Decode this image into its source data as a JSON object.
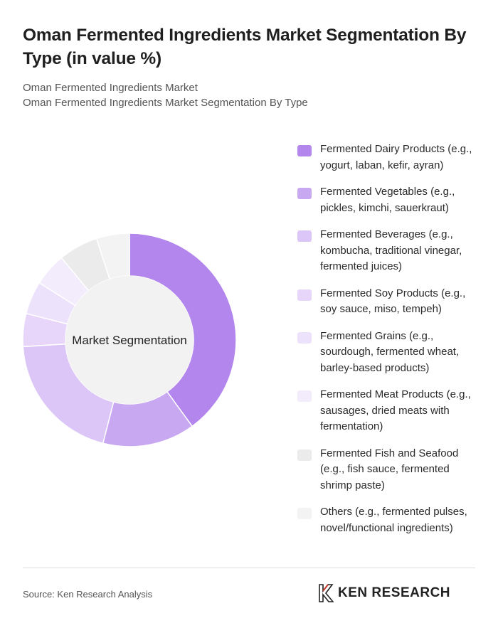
{
  "header": {
    "title": "Oman Fermented Ingredients Market Segmentation By Type (in value %)",
    "subtitle_line1": "Oman Fermented Ingredients Market",
    "subtitle_line2": "Oman Fermented Ingredients Market Segmentation By Type"
  },
  "chart_data": {
    "type": "pie",
    "center_label": "Market Segmentation",
    "series": [
      {
        "name": "Fermented Dairy Products (e.g., yogurt, laban, kefir, ayran)",
        "value": 40,
        "color": "#b286ec"
      },
      {
        "name": "Fermented Vegetables (e.g., pickles, kimchi, sauerkraut)",
        "value": 14,
        "color": "#c9a8f2"
      },
      {
        "name": "Fermented Beverages (e.g., kombucha, traditional vinegar, fermented juices)",
        "value": 20,
        "color": "#dcc5f7"
      },
      {
        "name": "Fermented Soy Products (e.g., soy sauce, miso, tempeh)",
        "value": 5,
        "color": "#e7d6fa"
      },
      {
        "name": "Fermented Grains (e.g., sourdough, fermented wheat, barley-based products)",
        "value": 5,
        "color": "#ede2fb"
      },
      {
        "name": "Fermented Meat Products (e.g., sausages, dried meats with fermentation)",
        "value": 5,
        "color": "#f2ecfc"
      },
      {
        "name": "Fermented Fish and Seafood (e.g., fish sauce, fermented shrimp paste)",
        "value": 6,
        "color": "#ebebeb"
      },
      {
        "name": "Others (e.g., fermented pulses, novel/functional ingredients)",
        "value": 5,
        "color": "#f3f3f3"
      }
    ],
    "legend_position": "right"
  },
  "footer": {
    "source": "Source: Ken Research Analysis",
    "logo_text": "KEN RESEARCH"
  }
}
